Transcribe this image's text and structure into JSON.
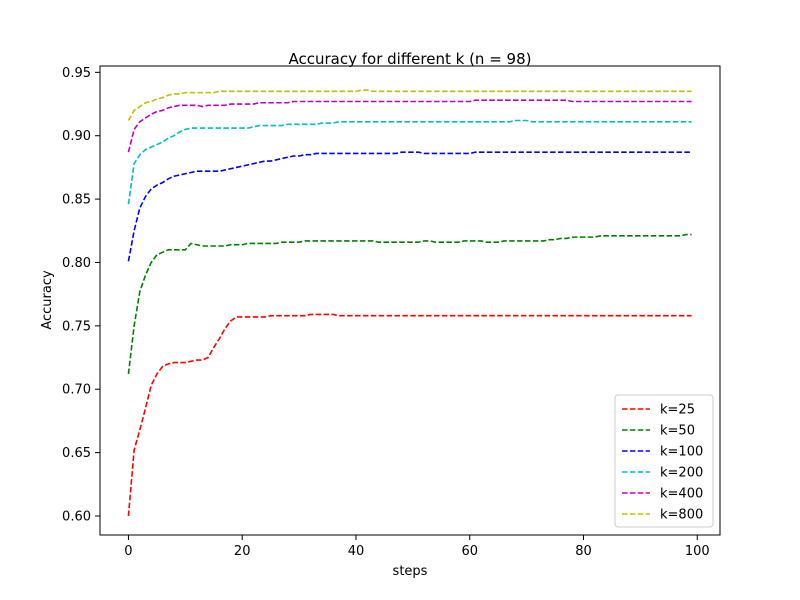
{
  "chart_data": {
    "type": "line",
    "title": "Accuracy for different k (n = 98)",
    "xlabel": "steps",
    "ylabel": "Accuracy",
    "xlim": [
      -5,
      104
    ],
    "ylim": [
      0.585,
      0.955
    ],
    "x_ticks": [
      0,
      20,
      40,
      60,
      80,
      100
    ],
    "y_ticks": [
      0.6,
      0.65,
      0.7,
      0.75,
      0.8,
      0.85,
      0.9,
      0.95
    ],
    "grid": false,
    "legend_position": "lower-right",
    "line_style": "dashed",
    "x": [
      0,
      1,
      2,
      3,
      4,
      5,
      6,
      7,
      8,
      9,
      10,
      11,
      12,
      13,
      14,
      15,
      16,
      17,
      18,
      19,
      20,
      21,
      22,
      23,
      24,
      25,
      26,
      27,
      28,
      29,
      30,
      31,
      32,
      33,
      34,
      35,
      36,
      37,
      38,
      39,
      40,
      41,
      42,
      43,
      44,
      45,
      46,
      47,
      48,
      49,
      50,
      51,
      52,
      53,
      54,
      55,
      56,
      57,
      58,
      59,
      60,
      61,
      62,
      63,
      64,
      65,
      66,
      67,
      68,
      69,
      70,
      71,
      72,
      73,
      74,
      75,
      76,
      77,
      78,
      79,
      80,
      81,
      82,
      83,
      84,
      85,
      86,
      87,
      88,
      89,
      90,
      91,
      92,
      93,
      94,
      95,
      96,
      97,
      98,
      99
    ],
    "series": [
      {
        "name": "k=25",
        "color": "#ff0000",
        "values": [
          0.6,
          0.652,
          0.668,
          0.685,
          0.703,
          0.712,
          0.718,
          0.72,
          0.721,
          0.721,
          0.721,
          0.722,
          0.723,
          0.723,
          0.725,
          0.733,
          0.74,
          0.748,
          0.754,
          0.757,
          0.757,
          0.757,
          0.757,
          0.757,
          0.757,
          0.758,
          0.758,
          0.758,
          0.758,
          0.758,
          0.758,
          0.758,
          0.759,
          0.759,
          0.759,
          0.759,
          0.759,
          0.758,
          0.758,
          0.758,
          0.758,
          0.758,
          0.758,
          0.758,
          0.758,
          0.758,
          0.758,
          0.758,
          0.758,
          0.758,
          0.758,
          0.758,
          0.758,
          0.758,
          0.758,
          0.758,
          0.758,
          0.758,
          0.758,
          0.758,
          0.758,
          0.758,
          0.758,
          0.758,
          0.758,
          0.758,
          0.758,
          0.758,
          0.758,
          0.758,
          0.758,
          0.758,
          0.758,
          0.758,
          0.758,
          0.758,
          0.758,
          0.758,
          0.758,
          0.758,
          0.758,
          0.758,
          0.758,
          0.758,
          0.758,
          0.758,
          0.758,
          0.758,
          0.758,
          0.758,
          0.758,
          0.758,
          0.758,
          0.758,
          0.758,
          0.758,
          0.758,
          0.758,
          0.758,
          0.758
        ]
      },
      {
        "name": "k=50",
        "color": "#008000",
        "values": [
          0.712,
          0.75,
          0.777,
          0.79,
          0.8,
          0.806,
          0.808,
          0.81,
          0.81,
          0.81,
          0.81,
          0.815,
          0.814,
          0.813,
          0.813,
          0.813,
          0.813,
          0.813,
          0.814,
          0.814,
          0.814,
          0.815,
          0.815,
          0.815,
          0.815,
          0.815,
          0.815,
          0.816,
          0.816,
          0.816,
          0.816,
          0.817,
          0.817,
          0.817,
          0.817,
          0.817,
          0.817,
          0.817,
          0.817,
          0.817,
          0.817,
          0.817,
          0.817,
          0.817,
          0.816,
          0.816,
          0.816,
          0.816,
          0.816,
          0.816,
          0.816,
          0.816,
          0.817,
          0.817,
          0.816,
          0.816,
          0.816,
          0.816,
          0.816,
          0.817,
          0.817,
          0.817,
          0.817,
          0.816,
          0.816,
          0.816,
          0.817,
          0.817,
          0.817,
          0.817,
          0.817,
          0.817,
          0.817,
          0.817,
          0.818,
          0.818,
          0.819,
          0.819,
          0.82,
          0.82,
          0.82,
          0.82,
          0.82,
          0.821,
          0.821,
          0.821,
          0.821,
          0.821,
          0.821,
          0.821,
          0.821,
          0.821,
          0.821,
          0.821,
          0.821,
          0.821,
          0.821,
          0.821,
          0.822,
          0.822
        ]
      },
      {
        "name": "k=100",
        "color": "#0000ff",
        "values": [
          0.801,
          0.825,
          0.843,
          0.852,
          0.858,
          0.861,
          0.863,
          0.866,
          0.868,
          0.869,
          0.87,
          0.871,
          0.872,
          0.872,
          0.872,
          0.872,
          0.872,
          0.873,
          0.874,
          0.875,
          0.876,
          0.877,
          0.878,
          0.879,
          0.88,
          0.88,
          0.881,
          0.882,
          0.883,
          0.884,
          0.884,
          0.885,
          0.885,
          0.886,
          0.886,
          0.886,
          0.886,
          0.886,
          0.886,
          0.886,
          0.886,
          0.886,
          0.886,
          0.886,
          0.886,
          0.886,
          0.886,
          0.886,
          0.887,
          0.887,
          0.887,
          0.887,
          0.886,
          0.886,
          0.886,
          0.886,
          0.886,
          0.886,
          0.886,
          0.886,
          0.886,
          0.887,
          0.887,
          0.887,
          0.887,
          0.887,
          0.887,
          0.887,
          0.887,
          0.887,
          0.887,
          0.887,
          0.887,
          0.887,
          0.887,
          0.887,
          0.887,
          0.887,
          0.887,
          0.887,
          0.887,
          0.887,
          0.887,
          0.887,
          0.887,
          0.887,
          0.887,
          0.887,
          0.887,
          0.887,
          0.887,
          0.887,
          0.887,
          0.887,
          0.887,
          0.887,
          0.887,
          0.887,
          0.887,
          0.887
        ]
      },
      {
        "name": "k=200",
        "color": "#00bfbf",
        "values": [
          0.846,
          0.878,
          0.885,
          0.889,
          0.891,
          0.893,
          0.895,
          0.898,
          0.9,
          0.903,
          0.905,
          0.906,
          0.906,
          0.906,
          0.906,
          0.906,
          0.906,
          0.906,
          0.906,
          0.906,
          0.906,
          0.906,
          0.907,
          0.908,
          0.908,
          0.908,
          0.908,
          0.908,
          0.909,
          0.909,
          0.909,
          0.909,
          0.909,
          0.909,
          0.91,
          0.91,
          0.91,
          0.911,
          0.911,
          0.911,
          0.911,
          0.911,
          0.911,
          0.911,
          0.911,
          0.911,
          0.911,
          0.911,
          0.911,
          0.911,
          0.911,
          0.911,
          0.911,
          0.911,
          0.911,
          0.911,
          0.911,
          0.911,
          0.911,
          0.911,
          0.911,
          0.911,
          0.911,
          0.911,
          0.911,
          0.911,
          0.911,
          0.911,
          0.912,
          0.912,
          0.912,
          0.911,
          0.911,
          0.911,
          0.911,
          0.911,
          0.911,
          0.911,
          0.911,
          0.911,
          0.911,
          0.911,
          0.911,
          0.911,
          0.911,
          0.911,
          0.911,
          0.911,
          0.911,
          0.911,
          0.911,
          0.911,
          0.911,
          0.911,
          0.911,
          0.911,
          0.911,
          0.911,
          0.911,
          0.911
        ]
      },
      {
        "name": "k=400",
        "color": "#bf00bf",
        "values": [
          0.887,
          0.905,
          0.911,
          0.914,
          0.917,
          0.919,
          0.92,
          0.922,
          0.923,
          0.924,
          0.924,
          0.924,
          0.924,
          0.923,
          0.924,
          0.924,
          0.924,
          0.924,
          0.925,
          0.925,
          0.925,
          0.925,
          0.925,
          0.926,
          0.926,
          0.926,
          0.926,
          0.926,
          0.926,
          0.927,
          0.927,
          0.927,
          0.927,
          0.927,
          0.927,
          0.927,
          0.927,
          0.927,
          0.927,
          0.927,
          0.927,
          0.927,
          0.927,
          0.927,
          0.927,
          0.927,
          0.927,
          0.927,
          0.927,
          0.927,
          0.927,
          0.927,
          0.927,
          0.927,
          0.927,
          0.927,
          0.927,
          0.927,
          0.927,
          0.927,
          0.927,
          0.928,
          0.928,
          0.928,
          0.928,
          0.928,
          0.928,
          0.928,
          0.928,
          0.928,
          0.928,
          0.928,
          0.928,
          0.928,
          0.928,
          0.928,
          0.928,
          0.928,
          0.927,
          0.927,
          0.927,
          0.927,
          0.927,
          0.927,
          0.927,
          0.927,
          0.927,
          0.927,
          0.927,
          0.927,
          0.927,
          0.927,
          0.927,
          0.927,
          0.927,
          0.927,
          0.927,
          0.927,
          0.927,
          0.927
        ]
      },
      {
        "name": "k=800",
        "color": "#bfbf00",
        "values": [
          0.912,
          0.92,
          0.923,
          0.926,
          0.927,
          0.929,
          0.93,
          0.932,
          0.933,
          0.933,
          0.934,
          0.934,
          0.934,
          0.934,
          0.934,
          0.934,
          0.935,
          0.935,
          0.935,
          0.935,
          0.935,
          0.935,
          0.935,
          0.935,
          0.935,
          0.935,
          0.935,
          0.935,
          0.935,
          0.935,
          0.935,
          0.935,
          0.935,
          0.935,
          0.935,
          0.935,
          0.935,
          0.935,
          0.935,
          0.935,
          0.935,
          0.936,
          0.936,
          0.935,
          0.935,
          0.935,
          0.935,
          0.935,
          0.935,
          0.935,
          0.935,
          0.935,
          0.935,
          0.935,
          0.935,
          0.935,
          0.935,
          0.935,
          0.935,
          0.935,
          0.935,
          0.935,
          0.935,
          0.935,
          0.935,
          0.935,
          0.935,
          0.935,
          0.935,
          0.935,
          0.935,
          0.935,
          0.935,
          0.935,
          0.935,
          0.935,
          0.935,
          0.935,
          0.935,
          0.935,
          0.935,
          0.935,
          0.935,
          0.935,
          0.935,
          0.935,
          0.935,
          0.935,
          0.935,
          0.935,
          0.935,
          0.935,
          0.935,
          0.935,
          0.935,
          0.935,
          0.935,
          0.935,
          0.935,
          0.935
        ]
      }
    ]
  }
}
